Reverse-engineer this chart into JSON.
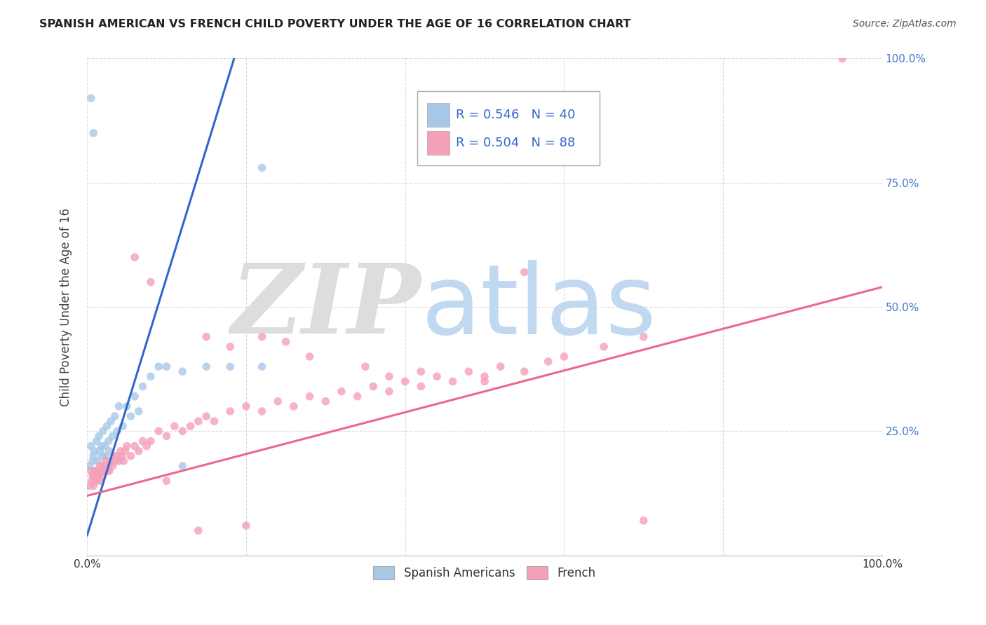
{
  "title": "SPANISH AMERICAN VS FRENCH CHILD POVERTY UNDER THE AGE OF 16 CORRELATION CHART",
  "source": "Source: ZipAtlas.com",
  "ylabel": "Child Poverty Under the Age of 16",
  "ylim": [
    0,
    1
  ],
  "xlim": [
    0,
    1
  ],
  "blue_R": 0.546,
  "blue_N": 40,
  "pink_R": 0.504,
  "pink_N": 88,
  "blue_color": "#a8c8e8",
  "pink_color": "#f4a0b8",
  "blue_line_color": "#3366cc",
  "pink_line_color": "#ee6688",
  "watermark_ZIP_color": "#dddddd",
  "watermark_atlas_color": "#c0d8f0",
  "background_color": "#ffffff",
  "legend_label_blue": "Spanish Americans",
  "legend_label_pink": "French",
  "blue_scatter_x": [
    0.003,
    0.005,
    0.007,
    0.008,
    0.009,
    0.01,
    0.012,
    0.013,
    0.015,
    0.016,
    0.018,
    0.019,
    0.02,
    0.022,
    0.023,
    0.025,
    0.027,
    0.028,
    0.03,
    0.032,
    0.035,
    0.038,
    0.04,
    0.045,
    0.05,
    0.055,
    0.06,
    0.065,
    0.07,
    0.08,
    0.09,
    0.1,
    0.12,
    0.15,
    0.18,
    0.22,
    0.005,
    0.008,
    0.22,
    0.12
  ],
  "blue_scatter_y": [
    0.18,
    0.22,
    0.19,
    0.2,
    0.21,
    0.17,
    0.23,
    0.19,
    0.24,
    0.21,
    0.22,
    0.2,
    0.25,
    0.22,
    0.2,
    0.26,
    0.23,
    0.21,
    0.27,
    0.24,
    0.28,
    0.25,
    0.3,
    0.26,
    0.3,
    0.28,
    0.32,
    0.29,
    0.34,
    0.36,
    0.38,
    0.38,
    0.37,
    0.38,
    0.38,
    0.38,
    0.92,
    0.85,
    0.78,
    0.18
  ],
  "pink_scatter_x": [
    0.003,
    0.005,
    0.006,
    0.007,
    0.008,
    0.009,
    0.01,
    0.011,
    0.012,
    0.013,
    0.014,
    0.015,
    0.016,
    0.017,
    0.018,
    0.019,
    0.02,
    0.022,
    0.024,
    0.025,
    0.027,
    0.028,
    0.03,
    0.032,
    0.034,
    0.036,
    0.038,
    0.04,
    0.042,
    0.044,
    0.046,
    0.048,
    0.05,
    0.055,
    0.06,
    0.065,
    0.07,
    0.075,
    0.08,
    0.09,
    0.1,
    0.11,
    0.12,
    0.13,
    0.14,
    0.15,
    0.16,
    0.18,
    0.2,
    0.22,
    0.24,
    0.26,
    0.28,
    0.3,
    0.32,
    0.34,
    0.36,
    0.38,
    0.4,
    0.42,
    0.44,
    0.46,
    0.48,
    0.5,
    0.52,
    0.55,
    0.58,
    0.6,
    0.65,
    0.7,
    0.15,
    0.18,
    0.22,
    0.25,
    0.28,
    0.35,
    0.38,
    0.42,
    0.5,
    0.95,
    0.06,
    0.08,
    0.1,
    0.14,
    0.2,
    0.55,
    0.62,
    0.7
  ],
  "pink_scatter_y": [
    0.14,
    0.17,
    0.15,
    0.16,
    0.14,
    0.16,
    0.15,
    0.17,
    0.15,
    0.16,
    0.17,
    0.16,
    0.18,
    0.15,
    0.17,
    0.16,
    0.18,
    0.17,
    0.19,
    0.17,
    0.18,
    0.17,
    0.19,
    0.18,
    0.2,
    0.19,
    0.2,
    0.19,
    0.21,
    0.2,
    0.19,
    0.21,
    0.22,
    0.2,
    0.22,
    0.21,
    0.23,
    0.22,
    0.23,
    0.25,
    0.24,
    0.26,
    0.25,
    0.26,
    0.27,
    0.28,
    0.27,
    0.29,
    0.3,
    0.29,
    0.31,
    0.3,
    0.32,
    0.31,
    0.33,
    0.32,
    0.34,
    0.33,
    0.35,
    0.34,
    0.36,
    0.35,
    0.37,
    0.36,
    0.38,
    0.37,
    0.39,
    0.4,
    0.42,
    0.44,
    0.44,
    0.42,
    0.44,
    0.43,
    0.4,
    0.38,
    0.36,
    0.37,
    0.35,
    1.0,
    0.6,
    0.55,
    0.15,
    0.05,
    0.06,
    0.57,
    0.82,
    0.07
  ],
  "blue_line_slope": 5.2,
  "blue_line_intercept": 0.04,
  "blue_line_solid_x0": 0.0,
  "blue_line_solid_x1": 0.185,
  "blue_line_dashed_x0": 0.185,
  "blue_line_dashed_x1": 0.26,
  "pink_line_slope": 0.42,
  "pink_line_intercept": 0.12,
  "pink_line_x0": 0.0,
  "pink_line_x1": 1.0
}
